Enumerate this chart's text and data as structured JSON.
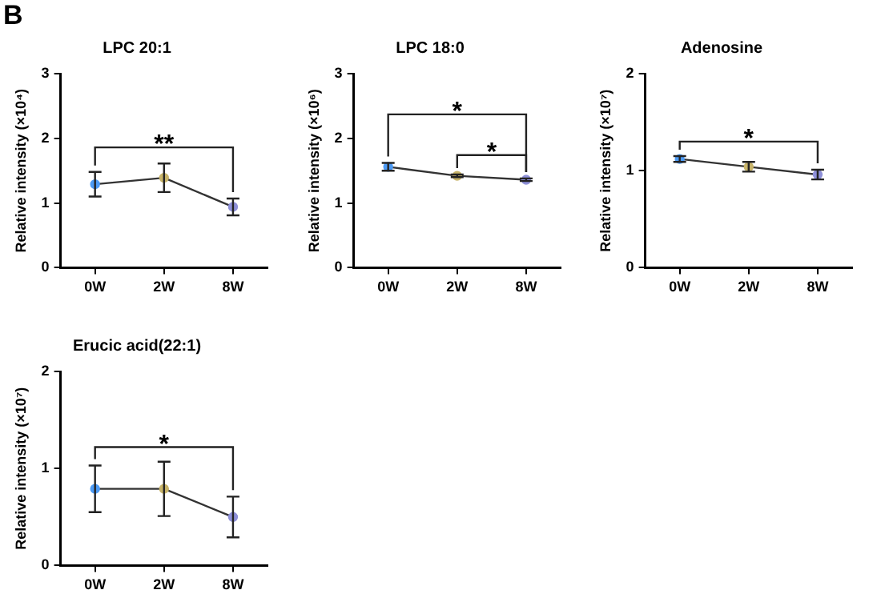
{
  "chart_data": [
    {
      "type": "line",
      "title": "LPC 20:1",
      "ylabel": "Relative intensity (×10⁴)",
      "categories": [
        "0W",
        "2W",
        "8W"
      ],
      "values": [
        1.29,
        1.39,
        0.94
      ],
      "colors": [
        "#4d9bf5",
        "#c8b46a",
        "#8e90d8"
      ],
      "errors": [
        [
          1.1,
          1.48
        ],
        [
          1.17,
          1.61
        ],
        [
          0.81,
          1.07
        ]
      ],
      "ylim": [
        0,
        3
      ],
      "yticks": [
        0,
        1,
        2,
        3
      ],
      "marker": "circle",
      "grid": false,
      "legend": false,
      "annotations": [
        "B",
        "**"
      ]
    },
    {
      "type": "line",
      "title": "LPC 18:0",
      "ylabel": "Relative intensity (×10⁶)",
      "categories": [
        "0W",
        "2W",
        "8W"
      ],
      "values": [
        1.56,
        1.42,
        1.36
      ],
      "colors": [
        "#4d9bf5",
        "#c8b46a",
        "#8e90d8"
      ],
      "errors": [
        [
          1.5,
          1.62
        ],
        [
          1.4,
          1.44
        ],
        [
          1.34,
          1.38
        ]
      ],
      "ylim": [
        0,
        3
      ],
      "yticks": [
        0,
        1,
        2,
        3
      ],
      "marker": "circle",
      "grid": false,
      "legend": false,
      "annotations": [
        "*",
        "*"
      ]
    },
    {
      "type": "line",
      "title": "Adenosine",
      "ylabel": "Relative intensity (×10⁷)",
      "categories": [
        "0W",
        "2W",
        "8W"
      ],
      "values": [
        1.12,
        1.04,
        0.96
      ],
      "colors": [
        "#4d9bf5",
        "#c8b46a",
        "#8e90d8"
      ],
      "errors": [
        [
          1.09,
          1.15
        ],
        [
          0.99,
          1.09
        ],
        [
          0.91,
          1.01
        ]
      ],
      "ylim": [
        0,
        2
      ],
      "yticks": [
        0,
        1,
        2
      ],
      "marker": "circle",
      "grid": false,
      "legend": false,
      "annotations": [
        "*"
      ]
    },
    {
      "type": "line",
      "title": "Erucic acid(22:1)",
      "ylabel": "Relative intensity (×10⁷)",
      "categories": [
        "0W",
        "2W",
        "8W"
      ],
      "values": [
        0.79,
        0.79,
        0.5
      ],
      "colors": [
        "#4d9bf5",
        "#c8b46a",
        "#8e90d8"
      ],
      "errors": [
        [
          0.55,
          1.03
        ],
        [
          0.51,
          1.07
        ],
        [
          0.29,
          0.71
        ]
      ],
      "ylim": [
        0,
        2
      ],
      "yticks": [
        0,
        1,
        2
      ],
      "marker": "circle",
      "grid": false,
      "legend": false,
      "annotations": [
        "*"
      ]
    }
  ]
}
